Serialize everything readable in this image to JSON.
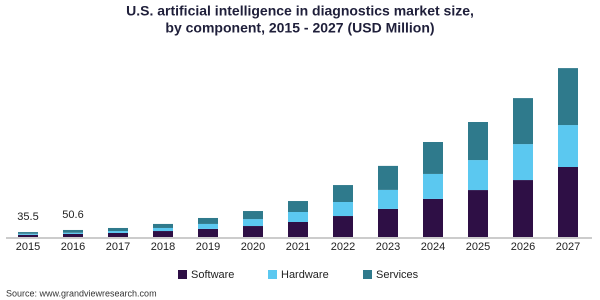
{
  "chart_data": {
    "type": "stacked_bar",
    "title": [
      "U.S. artificial intelligence in diagnostics market size,",
      "by component, 2015 - 2027 (USD Million)"
    ],
    "categories": [
      "2015",
      "2016",
      "2017",
      "2018",
      "2019",
      "2020",
      "2021",
      "2022",
      "2023",
      "2024",
      "2025",
      "2026",
      "2027"
    ],
    "series": [
      {
        "name": "Software",
        "color": "#2e0f45",
        "values": [
          15.5,
          22.0,
          29,
          43,
          58,
          79,
          108,
          151,
          202,
          274,
          338,
          410,
          504
        ]
      },
      {
        "name": "Hardware",
        "color": "#5bc8f0",
        "values": [
          7.5,
          8.6,
          14,
          22,
          36,
          50,
          72,
          101,
          137,
          180,
          216,
          259,
          302
        ]
      },
      {
        "name": "Services",
        "color": "#2f7a8c",
        "values": [
          12.5,
          20.0,
          22,
          29,
          43,
          58,
          79,
          122,
          173,
          230,
          274,
          331,
          410
        ]
      }
    ],
    "total_labels": [
      35.5,
      50.6
    ],
    "source": "Source: www.grandviewresearch.com"
  }
}
